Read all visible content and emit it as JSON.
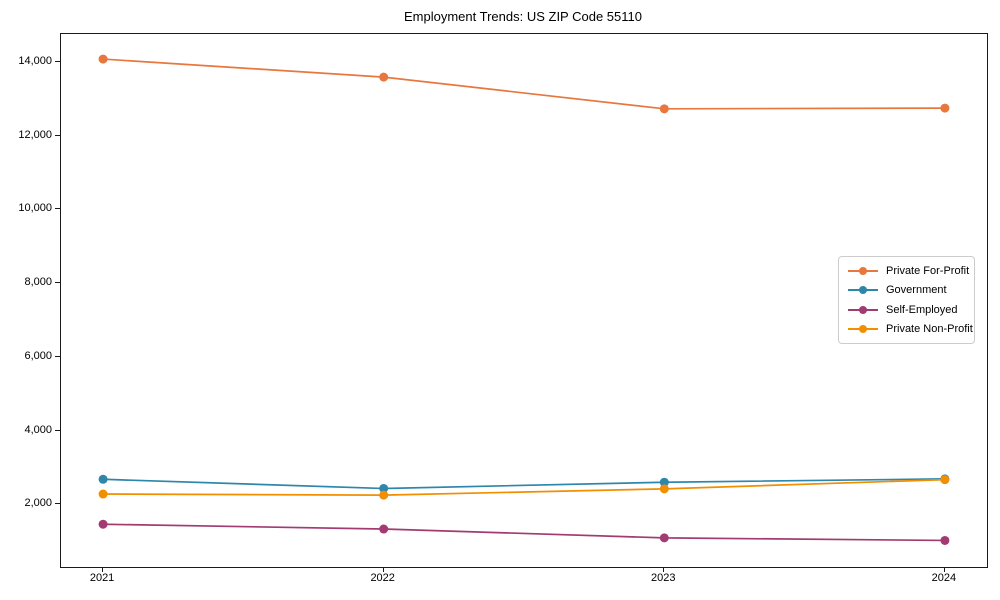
{
  "title": "Employment Trends: US ZIP Code 55110",
  "chart_data": {
    "type": "line",
    "title": "Employment Trends: US ZIP Code 55110",
    "x": [
      2021,
      2022,
      2023,
      2024
    ],
    "x_tick_labels": [
      "2021",
      "2022",
      "2023",
      "2024"
    ],
    "series": [
      {
        "name": "Private For-Profit",
        "color": "#E8773D",
        "values": [
          14080,
          13590,
          12730,
          12750
        ]
      },
      {
        "name": "Government",
        "color": "#2E86AB",
        "values": [
          2680,
          2430,
          2600,
          2690
        ]
      },
      {
        "name": "Self-Employed",
        "color": "#A23B72",
        "values": [
          1460,
          1330,
          1090,
          1020
        ]
      },
      {
        "name": "Private Non-Profit",
        "color": "#F18F01",
        "values": [
          2280,
          2250,
          2420,
          2670
        ]
      }
    ],
    "ylim": [
      300,
      14760
    ],
    "y_ticks": [
      2000,
      4000,
      6000,
      8000,
      10000,
      12000,
      14000
    ],
    "y_tick_labels": [
      "2,000",
      "4,000",
      "6,000",
      "8,000",
      "10,000",
      "12,000",
      "14,000"
    ],
    "xlabel": "",
    "ylabel": "",
    "grid": false,
    "legend_position": "center-right",
    "marker": "circle",
    "axis_color": "#1a1a1a"
  }
}
